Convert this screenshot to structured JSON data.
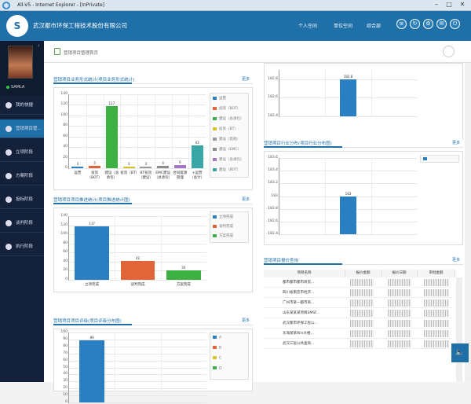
{
  "window": {
    "title": "All-V5 - Internet Explorer - [InPrivate]",
    "min": "–",
    "max": "□",
    "close": "✕"
  },
  "header": {
    "logo": "S",
    "company": "武汉都市环保工程技术股份有限公司",
    "nav": [
      "个人空间",
      "单位空间",
      "综合部"
    ]
  },
  "sidebar": {
    "user": "SAMLA",
    "items": [
      "我的快捷",
      "营销项目管...",
      "立项阶段",
      "方案阶段",
      "投标阶段",
      "谈判阶段",
      "执行阶段"
    ]
  },
  "page": {
    "breadcrumb": "营销项目管理首页",
    "more": "更多"
  },
  "chart1": {
    "title": "营销项目业务形式统计(项目业务形式统计)"
  },
  "chart2": {
    "title": "营销项目项目推进统计(项目推进统计图)"
  },
  "chart3": {
    "title": "营销项目项目评级(项目评级分布图)"
  },
  "chart4": {
    "title": ""
  },
  "chart5": {
    "title": "营销项目行业分布(项目行业分布图)"
  },
  "table1": {
    "title": "营销项目报价查询",
    "headers": [
      "项目名称",
      "报价金额",
      "报价日期",
      "审批金额"
    ],
    "rows": [
      "都市都市都市商贸...",
      "四川省南充市经济...",
      "广州市某一都市商...",
      "山东某某某项目SMSF...",
      "武汉都市环保工程公...",
      "东海某某Win大楼...",
      "武汉三层公共查询..."
    ]
  },
  "chart_data": [
    {
      "type": "bar",
      "title": "营销项目业务形式统计(项目业务形式统计)",
      "categories": [
        "运营",
        "投资（BOT）",
        "建设（总承包）",
        "投资（BT）",
        "BT投资（建设）",
        "EMC建设（总承包）",
        "合同能源管理",
        "+运营（总计）"
      ],
      "values": [
        3,
        5,
        117,
        3,
        3,
        4,
        6,
        43
      ],
      "ylim": [
        0,
        140
      ],
      "legend": [
        "运营",
        "投资（BOT）",
        "建设（总承包）",
        "投资（BT）",
        "建设（其他）",
        "建设（EMC）",
        "建设（总承包）",
        "建设（BOT）"
      ],
      "colors": [
        "#2a7fc0",
        "#e0663a",
        "#3cb043",
        "#d6c22c",
        "#9a9a9a",
        "#8d8d8d",
        "#a377c2",
        "#3aa6a6"
      ]
    },
    {
      "type": "bar",
      "title": "营销项目项目推进统计(项目推进统计图)",
      "categories": [
        "立项完成",
        "谈判完成",
        "方案完成"
      ],
      "values": [
        117,
        42,
        20
      ],
      "ylim": [
        0,
        140
      ],
      "legend": [
        "立项完成",
        "谈判完成",
        "方案完成"
      ],
      "colors": [
        "#2a7fc0",
        "#e0663a",
        "#3cb043"
      ]
    },
    {
      "type": "bar",
      "title": "营销项目项目评级(项目评级分布图)",
      "categories": [
        "A"
      ],
      "values": [
        89
      ],
      "ylim": [
        0,
        100
      ],
      "legend": [
        "A",
        "B",
        "C",
        "D"
      ],
      "colors": [
        "#2a7fc0",
        "#e0663a",
        "#d6c22c",
        "#3cb043"
      ]
    },
    {
      "type": "bar",
      "title": "",
      "values": [
        182.8
      ],
      "yticks": [
        "182.8",
        "182.6",
        "182.4"
      ],
      "ylim": [
        182.4,
        182.9
      ],
      "colors": [
        "#2a7fc0"
      ]
    },
    {
      "type": "bar",
      "title": "营销项目行业分布(项目行业分布图)",
      "values": [
        183
      ],
      "yticks": [
        "183.6",
        "183.4",
        "183.2",
        "183",
        "182.8",
        "182.6",
        "182.4"
      ],
      "ylim": [
        182.4,
        183.6
      ],
      "colors": [
        "#2a7fc0"
      ]
    }
  ]
}
